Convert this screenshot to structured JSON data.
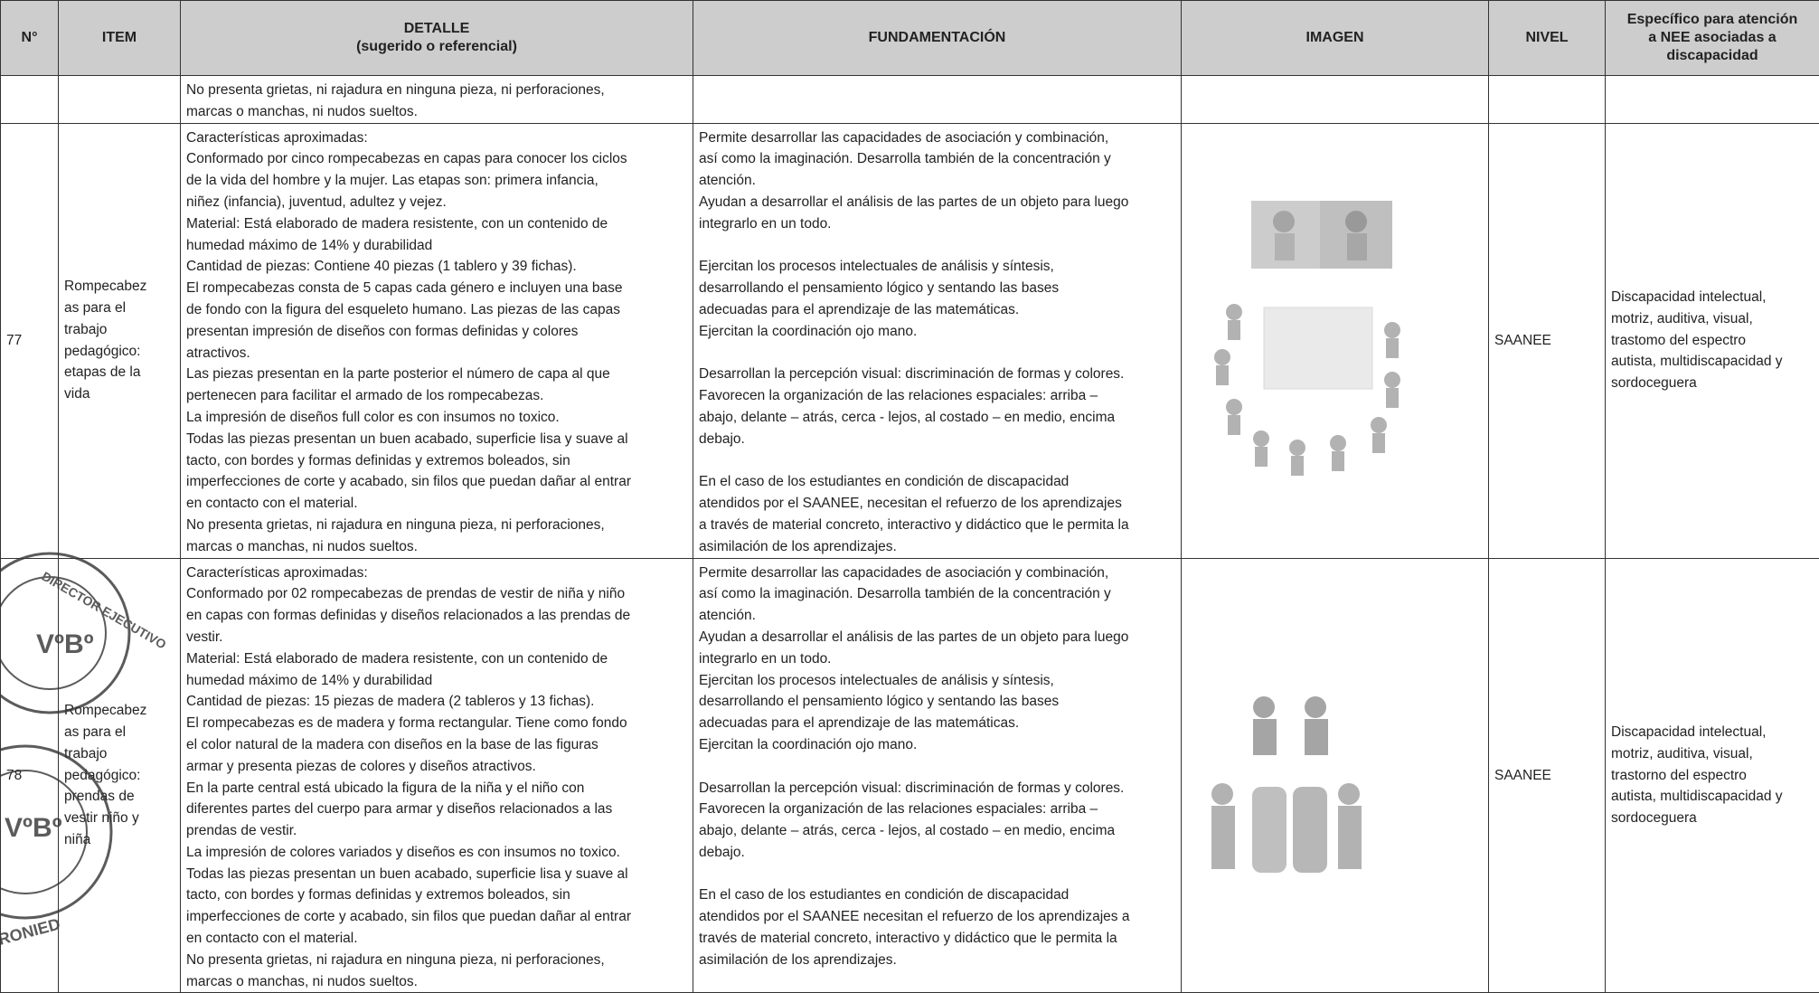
{
  "table": {
    "header": [
      [
        "N°"
      ],
      [
        "ITEM"
      ],
      [
        "DETALLE",
        "(sugerido o referencial)"
      ],
      [
        "FUNDAMENTACIÓN"
      ],
      [
        "IMAGEN"
      ],
      [
        "NIVEL"
      ],
      [
        "Específico para atención",
        "a NEE asociadas a",
        "discapacidad"
      ]
    ],
    "rows": [
      {
        "detalle": [
          "No presenta grietas, ni rajadura en ninguna pieza, ni perforaciones,",
          "marcas o manchas, ni nudos sueltos."
        ]
      },
      {
        "n": "77",
        "item": [
          "Rompecabez",
          "as para el",
          "trabajo",
          "pedagógico:",
          "etapas de la",
          "vida"
        ],
        "detalle": [
          "Características aproximadas:",
          "Conformado por cinco rompecabezas en capas para conocer los ciclos",
          "de la vida del hombre y la mujer. Las etapas son: primera infancia,",
          "niñez (infancia), juventud, adultez y vejez.",
          "Material: Está elaborado de madera resistente, con un contenido de",
          "humedad máximo de 14% y durabilidad",
          "Cantidad de piezas: Contiene 40 piezas (1 tablero y 39 fichas).",
          "El rompecabezas consta de 5 capas cada género e incluyen una base",
          "de fondo con la figura del esqueleto humano. Las piezas de las capas",
          "presentan impresión de diseños con formas definidas y colores",
          "atractivos.",
          "Las piezas presentan en la parte posterior el número de capa al que",
          "pertenecen para facilitar el armado de los rompecabezas.",
          "La impresión de diseños full color es con insumos no toxico.",
          "Todas las piezas presentan un buen acabado, superficie lisa y suave al",
          "tacto, con bordes y formas definidas y extremos boleados, sin",
          "imperfecciones de corte y acabado, sin filos que puedan dañar al entrar",
          "en contacto con el material.",
          "No presenta grietas, ni rajadura en ninguna pieza, ni perforaciones,",
          "marcas o manchas, ni nudos sueltos."
        ],
        "fundamentacion": [
          [
            "Permite desarrollar las capacidades de asociación y combinación,",
            "así como la imaginación. Desarrolla también de la concentración y",
            "atención.",
            "Ayudan a desarrollar el análisis de las partes de un objeto para luego",
            "integrarlo en un todo."
          ],
          [
            "Ejercitan los procesos intelectuales de análisis y síntesis,",
            "desarrollando el pensamiento lógico y sentando las bases",
            "adecuadas para el aprendizaje de las matemáticas.",
            "Ejercitan la coordinación ojo mano."
          ],
          [
            "Desarrollan la percepción visual: discriminación de formas y colores.",
            "Favorecen la organización de las relaciones espaciales: arriba –",
            "abajo, delante – atrás, cerca - lejos, al costado – en medio, encima",
            "debajo."
          ],
          [
            "En el caso de los estudiantes en condición de discapacidad",
            "atendidos por el SAANEE, necesitan el refuerzo de los aprendizajes",
            "a través de material concreto, interactivo y didáctico que le permita la",
            "asimilación de los aprendizajes."
          ]
        ],
        "nivel": "SAANEE",
        "especifico": [
          "Discapacidad intelectual,",
          "motriz, auditiva, visual,",
          "trastomo del espectro",
          "autista, multidiscapacidad y",
          "sordoceguera"
        ]
      },
      {
        "n": "78",
        "item": [
          "Rompecabez",
          "as para el",
          "trabajo",
          "pedagógico:",
          "prendas de",
          "vestir niño y",
          "niña"
        ],
        "detalle": [
          "Características aproximadas:",
          "Conformado por 02 rompecabezas de prendas de vestir de niña y niño",
          "en capas con formas definidas y diseños relacionados a las prendas de",
          "vestir.",
          "Material: Está elaborado de madera resistente, con un contenido de",
          "humedad máximo de 14% y durabilidad",
          "Cantidad de piezas: 15 piezas de madera (2 tableros y 13 fichas).",
          "El rompecabezas es de madera y forma rectangular. Tiene como fondo",
          "el color natural de la madera con diseños en la base de las figuras",
          "armar y presenta piezas de colores y diseños atractivos.",
          "En la parte central está ubicado la figura de la niña y el niño con",
          "diferentes partes del cuerpo para armar y diseños relacionados a las",
          "prendas de vestir.",
          "La impresión de colores variados y diseños es con insumos no toxico.",
          "Todas las piezas presentan un buen acabado, superficie lisa y suave al",
          "tacto, con bordes y formas definidas y extremos boleados, sin",
          "imperfecciones de corte y acabado, sin filos que puedan dañar al entrar",
          "en contacto con el material.",
          "No presenta grietas, ni rajadura en ninguna pieza, ni perforaciones,",
          "marcas o manchas, ni nudos sueltos."
        ],
        "fundamentacion": [
          [
            "Permite desarrollar las capacidades de asociación y combinación,",
            "así como la imaginación. Desarrolla también de la concentración y",
            "atención.",
            "Ayudan a desarrollar el análisis de las partes de un objeto para luego",
            "integrarlo en un todo.",
            "Ejercitan los procesos intelectuales de análisis y síntesis,",
            "desarrollando el pensamiento lógico y sentando las bases",
            "adecuadas para el aprendizaje de las matemáticas.",
            "Ejercitan la coordinación ojo mano."
          ],
          [
            "Desarrollan la percepción visual: discriminación de formas y colores.",
            "Favorecen la organización de las relaciones espaciales: arriba –",
            "abajo, delante – atrás, cerca - lejos, al costado – en medio, encima",
            "debajo."
          ],
          [
            "En el caso de los estudiantes en condición de discapacidad",
            "atendidos por el SAANEE necesitan el refuerzo de los aprendizajes a",
            "través de material concreto, interactivo y didáctico que le permita la",
            "asimilación de los aprendizajes."
          ]
        ],
        "nivel": "SAANEE",
        "especifico": [
          "Discapacidad intelectual,",
          "motriz, auditiva, visual,",
          "trastorno del espectro",
          "autista, multidiscapacidad y",
          "sordoceguera"
        ]
      }
    ]
  },
  "stamps": [
    [
      "DIRECTOR EJECUTIVO",
      "VºBº"
    ],
    [
      "VºBº",
      "RONIED"
    ]
  ]
}
